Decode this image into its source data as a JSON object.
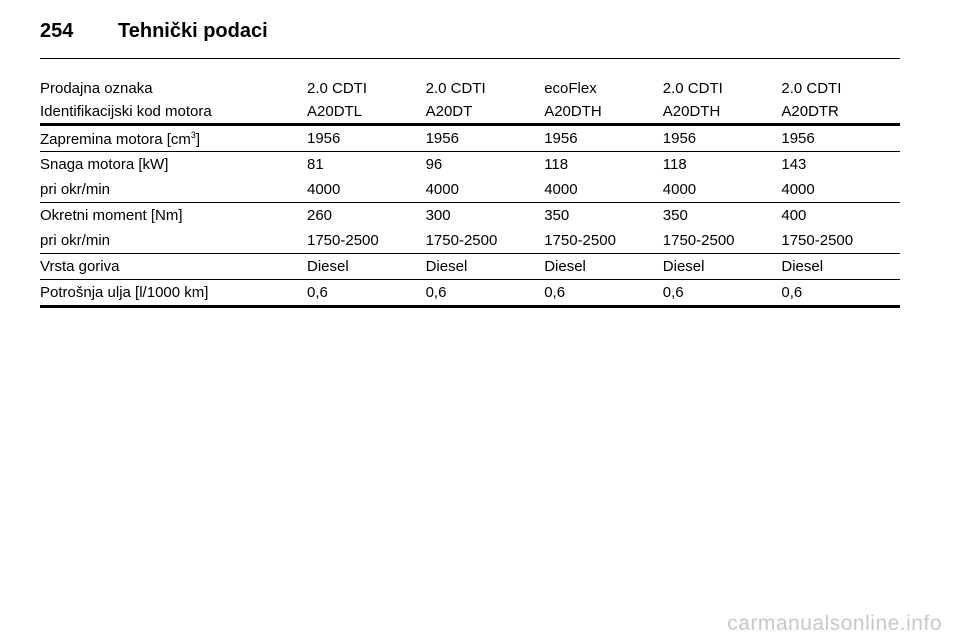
{
  "header": {
    "page_number": "254",
    "title": "Tehnički podaci"
  },
  "table": {
    "head": [
      {
        "label": "Prodajna oznaka",
        "cols": [
          "2.0 CDTI",
          "2.0 CDTI",
          "ecoFlex",
          "2.0 CDTI",
          "2.0 CDTI"
        ]
      },
      {
        "label": "Identifikacijski kod motora",
        "cols": [
          "A20DTL",
          "A20DT",
          "A20DTH",
          "A20DTH",
          "A20DTR"
        ]
      }
    ],
    "rows": [
      {
        "label": "Zapremina motora [cm",
        "label_sup": "3",
        "label_suffix": "]",
        "cols": [
          "1956",
          "1956",
          "1956",
          "1956",
          "1956"
        ]
      },
      {
        "label": "Snaga motora [kW]",
        "cols": [
          "81",
          "96",
          "118",
          "118",
          "143"
        ]
      },
      {
        "label": "pri okr/min",
        "cols": [
          "4000",
          "4000",
          "4000",
          "4000",
          "4000"
        ]
      },
      {
        "label": "Okretni moment [Nm]",
        "cols": [
          "260",
          "300",
          "350",
          "350",
          "400"
        ]
      },
      {
        "label": "pri okr/min",
        "cols": [
          "1750-2500",
          "1750-2500",
          "1750-2500",
          "1750-2500",
          "1750-2500"
        ]
      },
      {
        "label": "Vrsta goriva",
        "cols": [
          "Diesel",
          "Diesel",
          "Diesel",
          "Diesel",
          "Diesel"
        ]
      },
      {
        "label": "Potrošnja ulja [l/1000 km]",
        "cols": [
          "0,6",
          "0,6",
          "0,6",
          "0,6",
          "0,6"
        ]
      }
    ]
  },
  "watermark": "carmanualsonline.info"
}
